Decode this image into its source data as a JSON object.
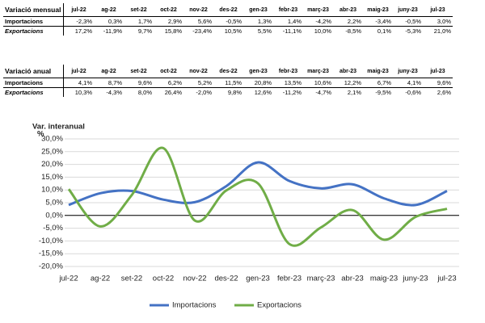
{
  "tables": [
    {
      "title": "Variació mensual",
      "columns": [
        "jul-22",
        "ag-22",
        "set-22",
        "oct-22",
        "nov-22",
        "des-22",
        "gen-23",
        "febr-23",
        "març-23",
        "abr-23",
        "maig-23",
        "juny-23",
        "jul-23"
      ],
      "rows": [
        {
          "label": "Importacions",
          "cells": [
            "-2,3%",
            "0,3%",
            "1,7%",
            "2,9%",
            "5,6%",
            "-0,5%",
            "1,3%",
            "1,4%",
            "-4,2%",
            "2,2%",
            "-3,4%",
            "-0,5%",
            "3,0%"
          ]
        },
        {
          "label": "Exportacions",
          "cells": [
            "17,2%",
            "-11,9%",
            "9,7%",
            "15,8%",
            "-23,4%",
            "10,5%",
            "5,5%",
            "-11,1%",
            "10,0%",
            "-8,5%",
            "0,1%",
            "-5,3%",
            "21,0%"
          ]
        }
      ]
    },
    {
      "title": "Variació anual",
      "columns": [
        "jul-22",
        "ag-22",
        "set-22",
        "oct-22",
        "nov-22",
        "des-22",
        "gen-23",
        "febr-23",
        "març-23",
        "abr-23",
        "maig-23",
        "juny-23",
        "jul-23"
      ],
      "rows": [
        {
          "label": "Importacions",
          "cells": [
            "4,1%",
            "8,7%",
            "9,6%",
            "6,2%",
            "5,2%",
            "11,5%",
            "20,8%",
            "13,5%",
            "10,6%",
            "12,2%",
            "6,7%",
            "4,1%",
            "9,6%"
          ]
        },
        {
          "label": "Exportacions",
          "cells": [
            "10,3%",
            "-4,3%",
            "8,0%",
            "26,4%",
            "-2,0%",
            "9,8%",
            "12,6%",
            "-11,2%",
            "-4,7%",
            "2,1%",
            "-9,5%",
            "-0,6%",
            "2,6%"
          ]
        }
      ]
    }
  ],
  "chart_data": {
    "type": "line",
    "ylabel": "Var. interanual",
    "yunit": "%",
    "categories": [
      "jul-22",
      "ag-22",
      "set-22",
      "oct-22",
      "nov-22",
      "des-22",
      "gen-23",
      "febr-23",
      "març-23",
      "abr-23",
      "maig-23",
      "juny-23",
      "jul-23"
    ],
    "series": [
      {
        "name": "Importacions",
        "color": "#4472c4",
        "values": [
          4.1,
          8.7,
          9.6,
          6.2,
          5.2,
          11.5,
          20.8,
          13.5,
          10.6,
          12.2,
          6.7,
          4.1,
          9.6
        ]
      },
      {
        "name": "Exportacions",
        "color": "#70ad47",
        "values": [
          10.3,
          -4.3,
          8.0,
          26.4,
          -2.0,
          9.8,
          12.6,
          -11.2,
          -4.7,
          2.1,
          -9.5,
          -0.6,
          2.6
        ]
      }
    ],
    "ylim": [
      -20,
      30
    ],
    "yticks": [
      {
        "value": -20,
        "label": "-20,0%"
      },
      {
        "value": -15,
        "label": "-15,0%"
      },
      {
        "value": -10,
        "label": "-10,0%"
      },
      {
        "value": -5,
        "label": "-5,0%"
      },
      {
        "value": 0,
        "label": "0,0%"
      },
      {
        "value": 5,
        "label": "5,0%"
      },
      {
        "value": 10,
        "label": "10,0%"
      },
      {
        "value": 15,
        "label": "15,0%"
      },
      {
        "value": 20,
        "label": "20,0%"
      },
      {
        "value": 25,
        "label": "25,0%"
      },
      {
        "value": 30,
        "label": "30,0%"
      }
    ],
    "legend": "bottom"
  }
}
